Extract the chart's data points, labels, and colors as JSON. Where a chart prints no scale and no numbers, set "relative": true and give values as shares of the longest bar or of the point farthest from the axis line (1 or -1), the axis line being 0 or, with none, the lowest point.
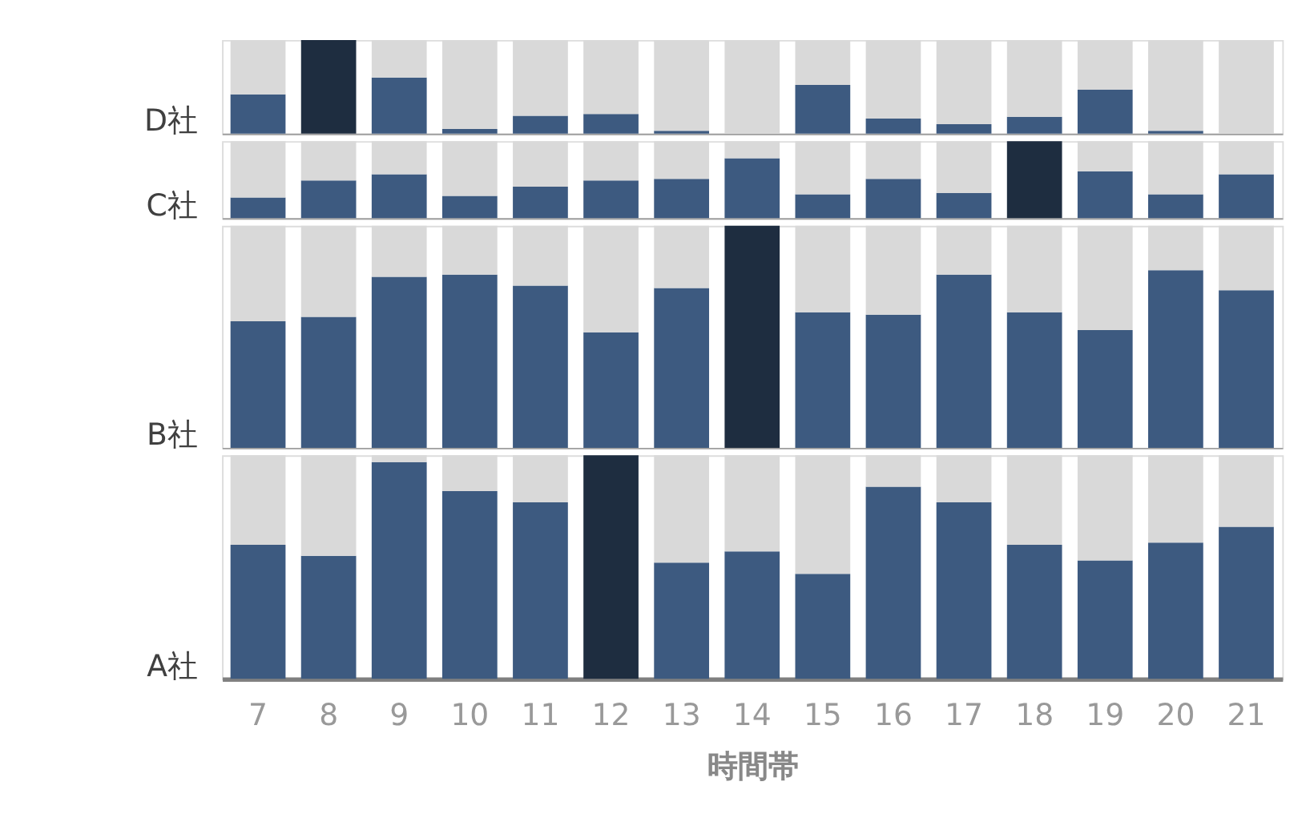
{
  "chart_data": [
    {
      "type": "bar",
      "relative": true,
      "stacked": true,
      "ylabel": "D社",
      "tick_labels": false,
      "categories": [
        "7",
        "8",
        "9",
        "10",
        "11",
        "12",
        "13",
        "14",
        "15",
        "16",
        "17",
        "18",
        "19",
        "20",
        "21"
      ],
      "series": [
        {
          "colors": [
            "#3d5a80",
            "#1e2d40",
            "#3d5a80",
            "#3d5a80",
            "#3d5a80",
            "#3d5a80",
            "#3d5a80",
            "#3d5a80",
            "#3d5a80",
            "#3d5a80",
            "#3d5a80",
            "#3d5a80",
            "#3d5a80",
            "#3d5a80",
            "#3d5a80"
          ],
          "values": [
            0.42,
            1,
            0.6,
            0.05,
            0.19,
            0.21,
            0.03,
            0,
            0.52,
            0.16,
            0.1,
            0.18,
            0.47,
            0.03,
            0
          ]
        },
        {
          "color": "#d9d9d9",
          "values": [
            0.58,
            0,
            0.4,
            0.95,
            0.81,
            0.79,
            0.97,
            1,
            0.48,
            0.84,
            0.9,
            0.82,
            0.53,
            0.97,
            1
          ]
        }
      ]
    },
    {
      "type": "bar",
      "relative": true,
      "stacked": true,
      "ylabel": "C社",
      "tick_labels": false,
      "categories": [
        "7",
        "8",
        "9",
        "10",
        "11",
        "12",
        "13",
        "14",
        "15",
        "16",
        "17",
        "18",
        "19",
        "20",
        "21"
      ],
      "series": [
        {
          "colors": [
            "#3d5a80",
            "#3d5a80",
            "#3d5a80",
            "#3d5a80",
            "#3d5a80",
            "#3d5a80",
            "#3d5a80",
            "#3d5a80",
            "#3d5a80",
            "#3d5a80",
            "#3d5a80",
            "#1e2d40",
            "#3d5a80",
            "#3d5a80",
            "#3d5a80"
          ],
          "values": [
            0.27,
            0.49,
            0.57,
            0.29,
            0.41,
            0.49,
            0.51,
            0.78,
            0.31,
            0.51,
            0.33,
            1,
            0.61,
            0.31,
            0.57
          ]
        },
        {
          "color": "#d9d9d9",
          "values": [
            0.73,
            0.51,
            0.43,
            0.71,
            0.59,
            0.51,
            0.49,
            0.22,
            0.69,
            0.49,
            0.67,
            0,
            0.39,
            0.69,
            0.43
          ]
        }
      ]
    },
    {
      "type": "bar",
      "relative": true,
      "stacked": true,
      "ylabel": "B社",
      "tick_labels": false,
      "categories": [
        "7",
        "8",
        "9",
        "10",
        "11",
        "12",
        "13",
        "14",
        "15",
        "16",
        "17",
        "18",
        "19",
        "20",
        "21"
      ],
      "series": [
        {
          "colors": [
            "#3d5a80",
            "#3d5a80",
            "#3d5a80",
            "#3d5a80",
            "#3d5a80",
            "#3d5a80",
            "#3d5a80",
            "#1e2d40",
            "#3d5a80",
            "#3d5a80",
            "#3d5a80",
            "#3d5a80",
            "#3d5a80",
            "#3d5a80",
            "#3d5a80"
          ],
          "values": [
            0.57,
            0.59,
            0.77,
            0.78,
            0.73,
            0.52,
            0.72,
            1,
            0.61,
            0.6,
            0.78,
            0.61,
            0.53,
            0.8,
            0.71
          ]
        },
        {
          "color": "#d9d9d9",
          "values": [
            0.43,
            0.41,
            0.23,
            0.22,
            0.27,
            0.48,
            0.28,
            0,
            0.39,
            0.4,
            0.22,
            0.39,
            0.47,
            0.2,
            0.29
          ]
        }
      ]
    },
    {
      "type": "bar",
      "relative": true,
      "stacked": true,
      "ylabel": "A社",
      "xlabel": "時間帯",
      "tick_labels": "x",
      "categories": [
        "7",
        "8",
        "9",
        "10",
        "11",
        "12",
        "13",
        "14",
        "15",
        "16",
        "17",
        "18",
        "19",
        "20",
        "21"
      ],
      "series": [
        {
          "colors": [
            "#3d5a80",
            "#3d5a80",
            "#3d5a80",
            "#3d5a80",
            "#3d5a80",
            "#1e2d40",
            "#3d5a80",
            "#3d5a80",
            "#3d5a80",
            "#3d5a80",
            "#3d5a80",
            "#3d5a80",
            "#3d5a80",
            "#3d5a80",
            "#3d5a80"
          ],
          "values": [
            0.6,
            0.55,
            0.97,
            0.84,
            0.79,
            1,
            0.52,
            0.57,
            0.47,
            0.86,
            0.79,
            0.6,
            0.53,
            0.61,
            0.68
          ]
        },
        {
          "color": "#d9d9d9",
          "values": [
            0.4,
            0.45,
            0.03,
            0.16,
            0.21,
            0,
            0.48,
            0.43,
            0.53,
            0.14,
            0.21,
            0.4,
            0.47,
            0.39,
            0.32
          ]
        }
      ]
    }
  ]
}
